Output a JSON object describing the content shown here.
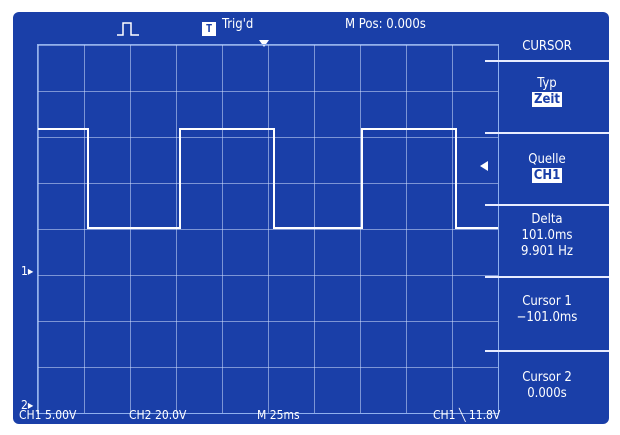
{
  "header": {
    "pulse_icon": "pulse-icon",
    "trigger_badge": "T",
    "trigger_status": "Trig'd",
    "m_pos": "M Pos: 0.000s",
    "menu_title": "CURSOR"
  },
  "menu": {
    "items": [
      {
        "label": "Typ",
        "value": "Zeit",
        "highlight": true
      },
      {
        "label": "Quelle",
        "value": "CH1",
        "highlight": true
      },
      {
        "label": "Delta",
        "lines": [
          "101.0ms",
          "9.901 Hz"
        ]
      },
      {
        "label": "Cursor 1",
        "value": "−101.0ms"
      },
      {
        "label": "Cursor 2",
        "value": "0.000s"
      }
    ]
  },
  "footer": {
    "ch1": "CH1  5.00V",
    "ch2": "CH2  20.0V",
    "time": "M  25ms",
    "trigger": "CH1  ╲  11.8V"
  },
  "markers": {
    "ch1": "1",
    "ch2": "2"
  },
  "colors": {
    "screen_bg": "#1a3fa8",
    "trace": "#ffffff",
    "grid": "#cddcfa"
  }
}
